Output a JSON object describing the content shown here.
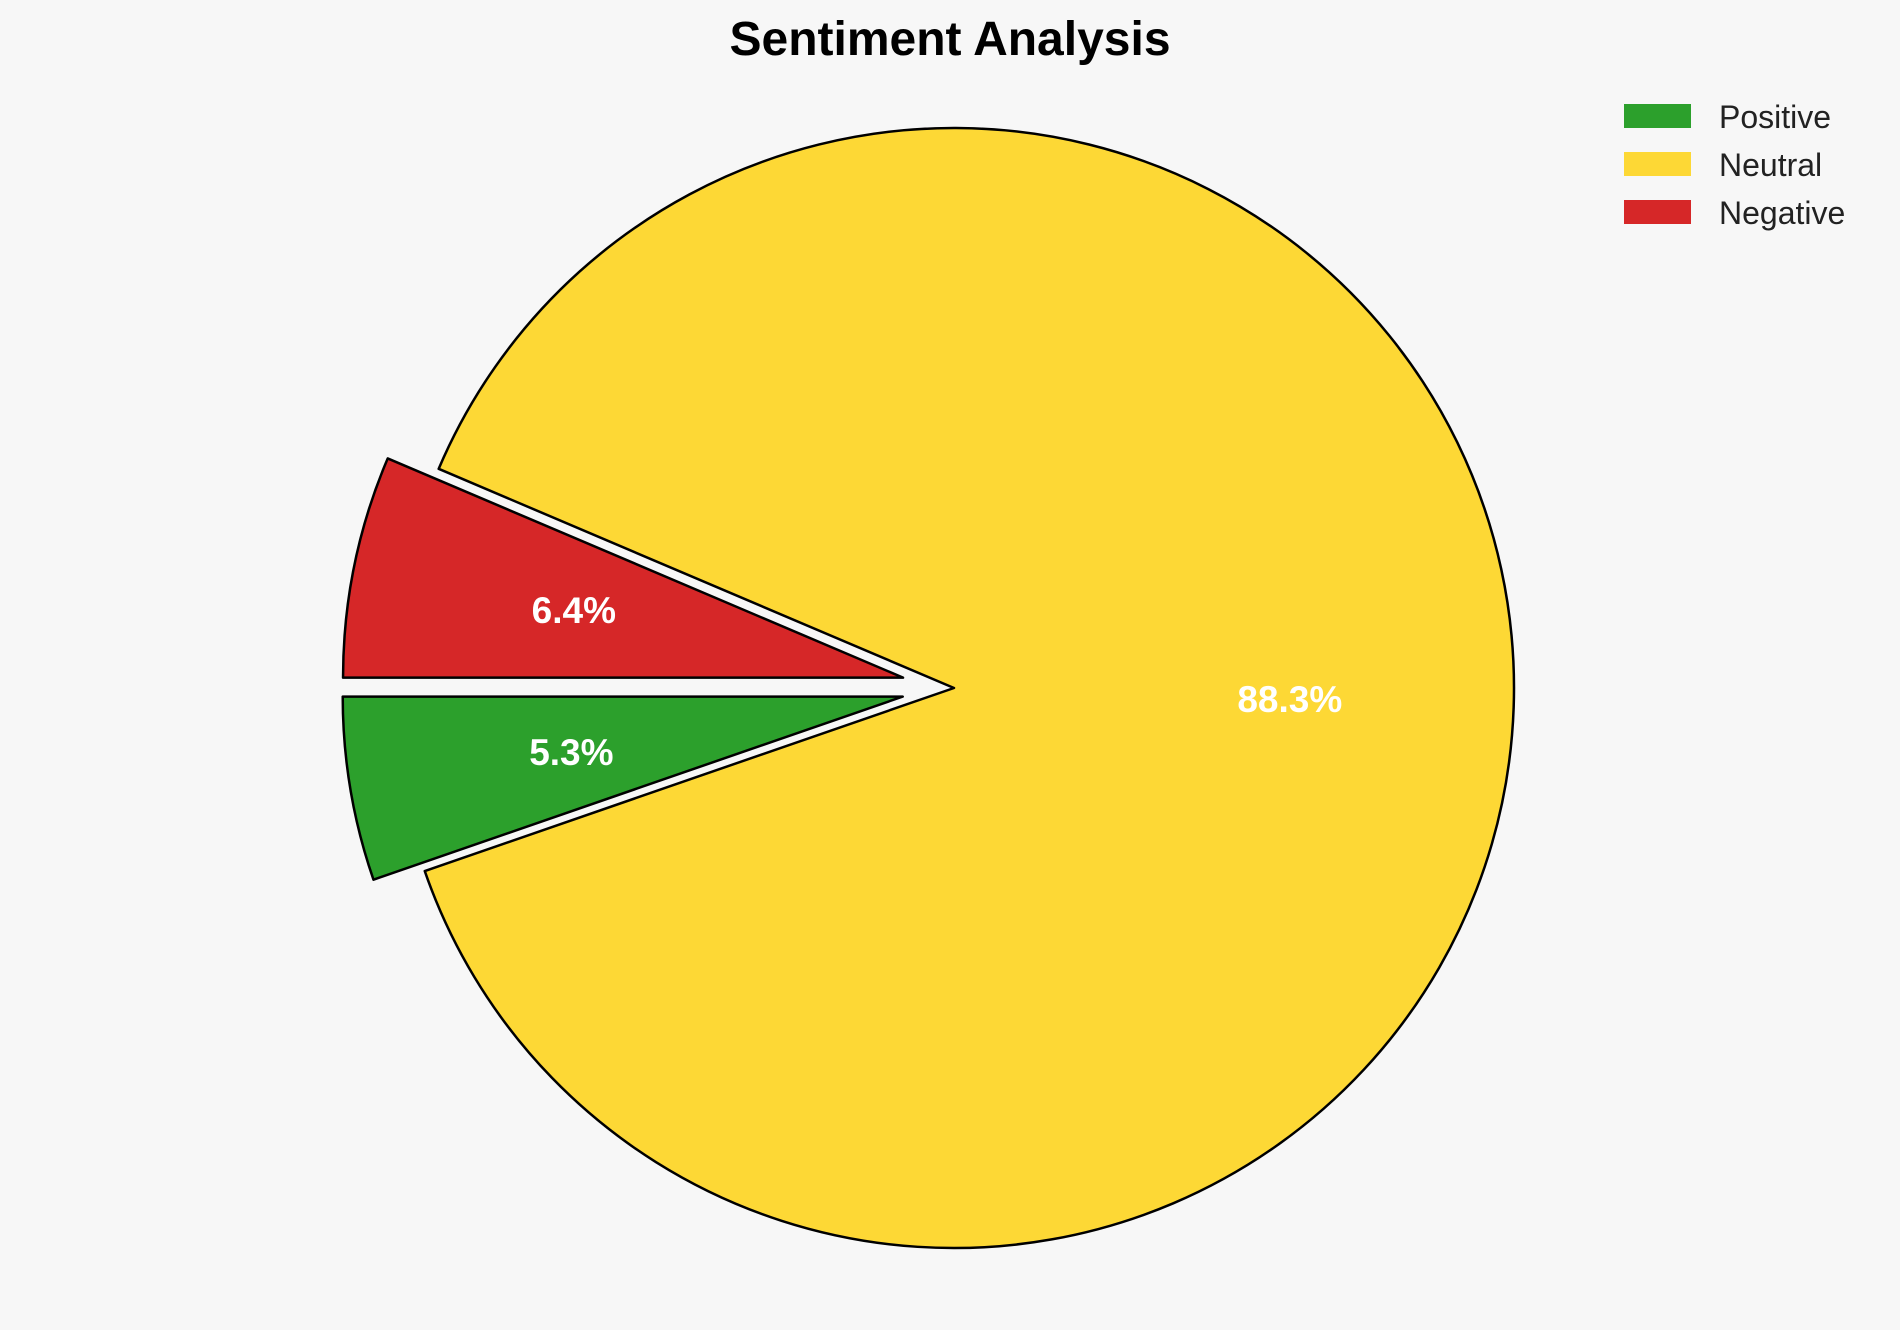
{
  "chart_data": {
    "type": "pie",
    "title": "Sentiment Analysis",
    "labels": [
      "Positive",
      "Neutral",
      "Negative"
    ],
    "values": [
      5.3,
      88.3,
      6.4
    ],
    "value_labels": [
      "5.3%",
      "88.3%",
      "6.4%"
    ],
    "colors": [
      "#2ca02c",
      "#fdd835",
      "#d62728"
    ],
    "exploded": [
      true,
      false,
      true
    ],
    "edge_color": "#000000",
    "legend": {
      "position": "top-right",
      "entries": [
        "Positive",
        "Neutral",
        "Negative"
      ]
    },
    "background": "#f7f7f7"
  }
}
